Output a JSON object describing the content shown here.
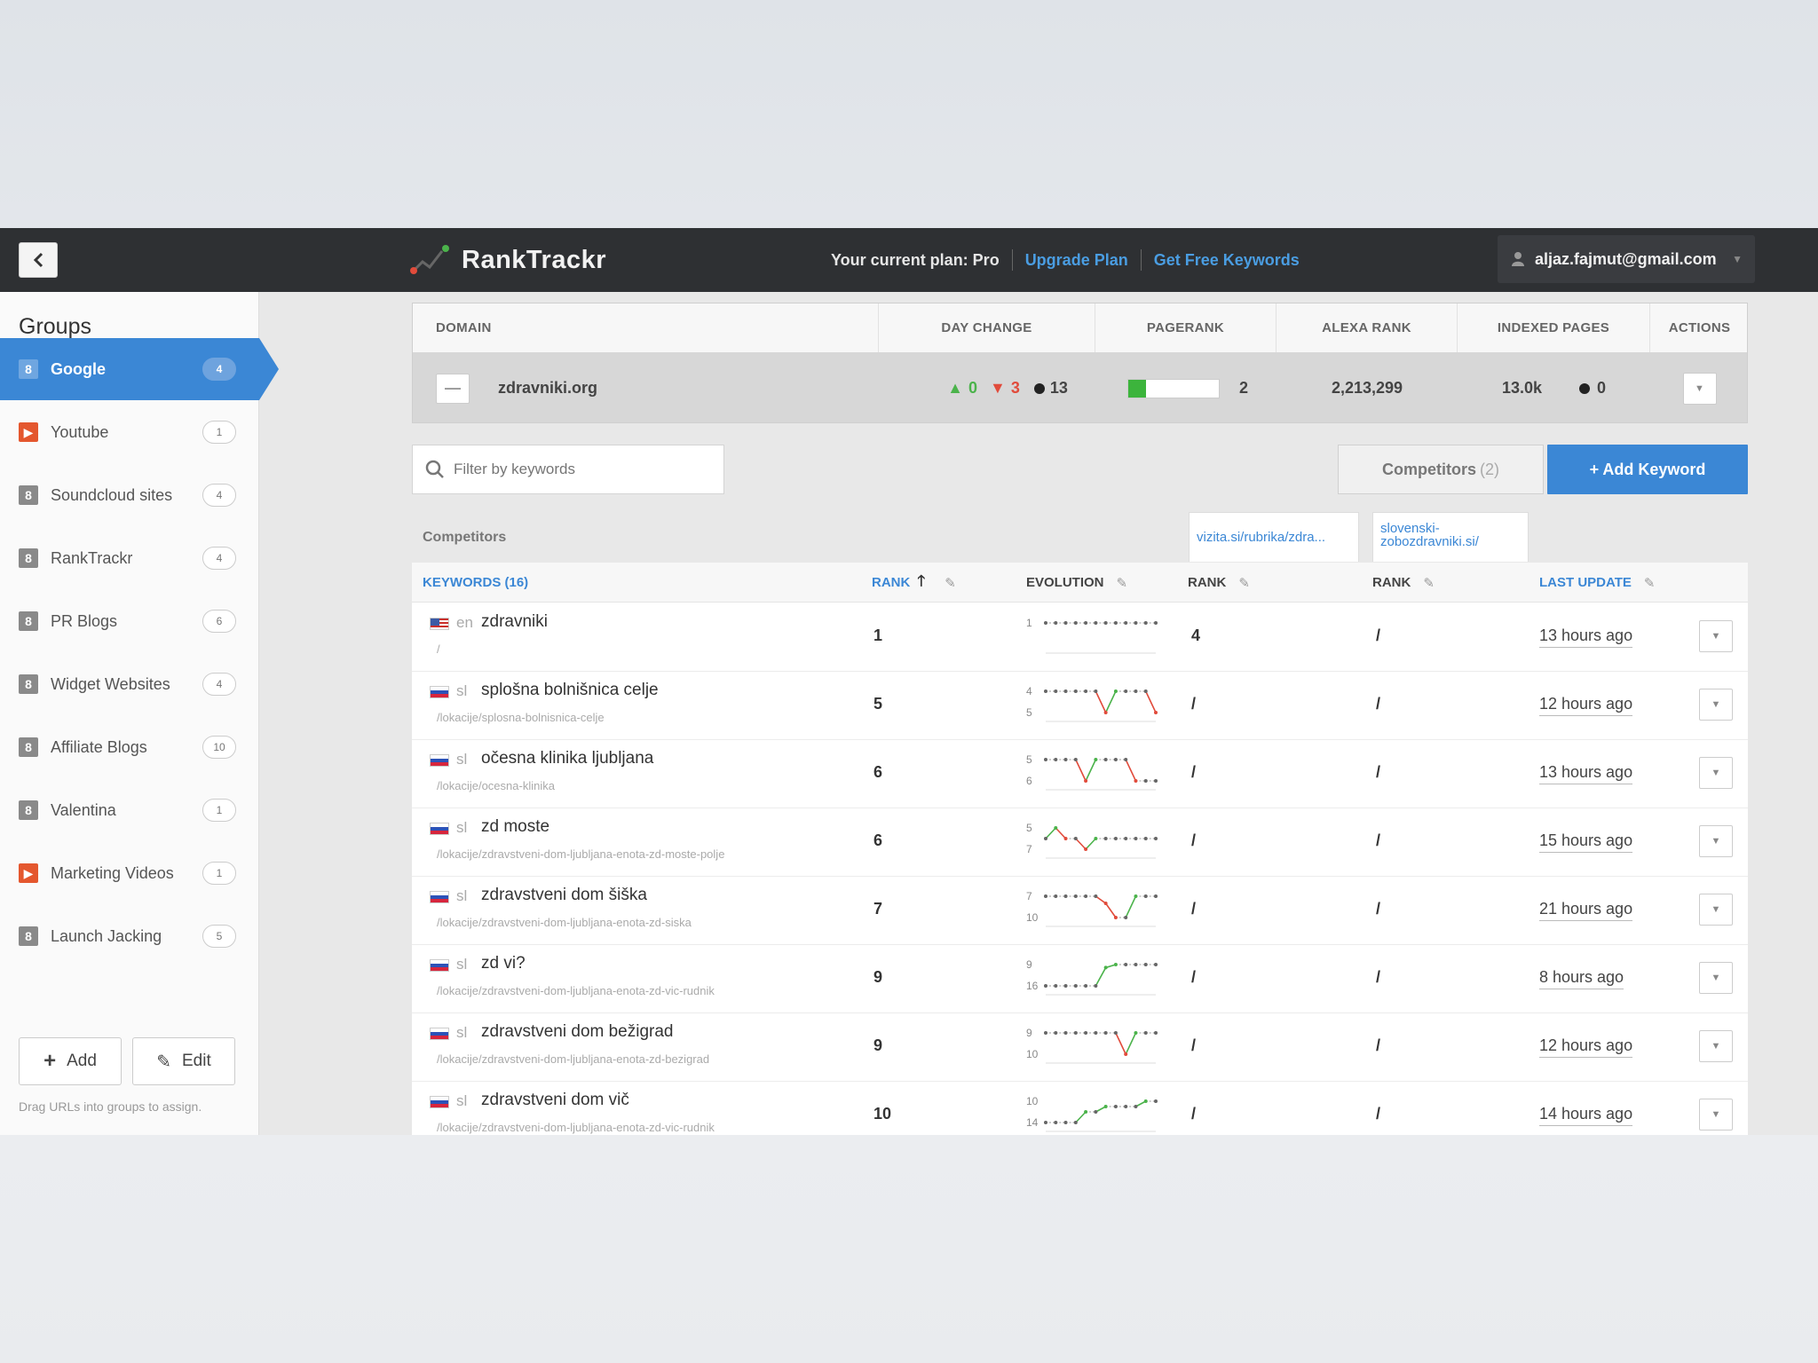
{
  "topbar": {
    "app_name": "RankTrackr",
    "plan_text": "Your current plan: Pro",
    "upgrade_link": "Upgrade Plan",
    "free_keywords_link": "Get Free Keywords",
    "user_email": "aljaz.fajmut@gmail.com"
  },
  "sidebar": {
    "title": "Groups",
    "items": [
      {
        "label": "Google",
        "count": "4",
        "icon": "google-icon",
        "active": true
      },
      {
        "label": "Youtube",
        "count": "1",
        "icon": "youtube-icon"
      },
      {
        "label": "Soundcloud sites",
        "count": "4",
        "icon": "google-icon"
      },
      {
        "label": "RankTrackr",
        "count": "4",
        "icon": "google-icon"
      },
      {
        "label": "PR Blogs",
        "count": "6",
        "icon": "google-icon"
      },
      {
        "label": "Widget Websites",
        "count": "4",
        "icon": "google-icon"
      },
      {
        "label": "Affiliate Blogs",
        "count": "10",
        "icon": "google-icon"
      },
      {
        "label": "Valentina",
        "count": "1",
        "icon": "google-icon"
      },
      {
        "label": "Marketing Videos",
        "count": "1",
        "icon": "youtube-icon"
      },
      {
        "label": "Launch Jacking",
        "count": "5",
        "icon": "google-icon"
      }
    ],
    "add_label": "Add",
    "edit_label": "Edit",
    "drag_hint": "Drag URLs into groups to assign."
  },
  "domain_table": {
    "headers": {
      "domain": "DOMAIN",
      "day_change": "DAY CHANGE",
      "pagerank": "PAGERANK",
      "alexa": "ALEXA RANK",
      "indexed": "INDEXED PAGES",
      "actions": "ACTIONS"
    },
    "row": {
      "domain": "zdravniki.org",
      "up": "0",
      "down": "3",
      "same": "13",
      "pagerank": "2",
      "pagerank_fill": 0.2,
      "alexa": "2,213,299",
      "indexed": "13.0k",
      "indexed_dot": "0"
    }
  },
  "filter": {
    "placeholder": "Filter by keywords"
  },
  "competitors_button": {
    "label": "Competitors",
    "count": "(2)"
  },
  "add_keyword_button": {
    "label": "+ Add Keyword"
  },
  "competitors_label": "Competitors",
  "competitor_tabs": [
    "vizita.si/rubrika/zdra...",
    "slovenski-zobozdravniki.si/"
  ],
  "keywords_table": {
    "headers": {
      "keywords": "KEYWORDS (16)",
      "rank": "RANK",
      "evolution": "EVOLUTION",
      "comp_rank_1": "RANK",
      "comp_rank_2": "RANK",
      "last_update": "LAST UPDATE"
    },
    "rows": [
      {
        "flag": "us",
        "lang": "en",
        "keyword": "zdravniki",
        "url": "/",
        "rank": "1",
        "evo_top": "1",
        "evo_bottom": "",
        "evo": [
          1,
          1,
          1,
          1,
          1,
          1,
          1,
          1,
          1,
          1,
          1,
          1
        ],
        "c1": "4",
        "c2": "/",
        "updated": "13 hours ago"
      },
      {
        "flag": "si",
        "lang": "sl",
        "keyword": "splošna bolnišnica celje",
        "url": "/lokacije/splosna-bolnisnica-celje",
        "rank": "5",
        "evo_top": "4",
        "evo_bottom": "5",
        "evo": [
          4,
          4,
          4,
          4,
          4,
          4,
          5,
          4,
          4,
          4,
          4,
          5
        ],
        "c1": "/",
        "c2": "/",
        "updated": "12 hours ago"
      },
      {
        "flag": "si",
        "lang": "sl",
        "keyword": "očesna klinika ljubljana",
        "url": "/lokacije/ocesna-klinika",
        "rank": "6",
        "evo_top": "5",
        "evo_bottom": "6",
        "evo": [
          5,
          5,
          5,
          5,
          6,
          5,
          5,
          5,
          5,
          6,
          6,
          6
        ],
        "c1": "/",
        "c2": "/",
        "updated": "13 hours ago"
      },
      {
        "flag": "si",
        "lang": "sl",
        "keyword": "zd moste",
        "url": "/lokacije/zdravstveni-dom-ljubljana-enota-zd-moste-polje",
        "rank": "6",
        "evo_top": "5",
        "evo_bottom": "7",
        "evo": [
          6,
          5,
          6,
          6,
          7,
          6,
          6,
          6,
          6,
          6,
          6,
          6
        ],
        "c1": "/",
        "c2": "/",
        "updated": "15 hours ago"
      },
      {
        "flag": "si",
        "lang": "sl",
        "keyword": "zdravstveni dom šiška",
        "url": "/lokacije/zdravstveni-dom-ljubljana-enota-zd-siska",
        "rank": "7",
        "evo_top": "7",
        "evo_bottom": "10",
        "evo": [
          7,
          7,
          7,
          7,
          7,
          7,
          8,
          10,
          10,
          7,
          7,
          7
        ],
        "c1": "/",
        "c2": "/",
        "updated": "21 hours ago"
      },
      {
        "flag": "si",
        "lang": "sl",
        "keyword": "zd vi?",
        "url": "/lokacije/zdravstveni-dom-ljubljana-enota-zd-vic-rudnik",
        "rank": "9",
        "evo_top": "9",
        "evo_bottom": "16",
        "evo": [
          16,
          16,
          16,
          16,
          16,
          16,
          10,
          9,
          9,
          9,
          9,
          9
        ],
        "c1": "/",
        "c2": "/",
        "updated": "8 hours ago"
      },
      {
        "flag": "si",
        "lang": "sl",
        "keyword": "zdravstveni dom bežigrad",
        "url": "/lokacije/zdravstveni-dom-ljubljana-enota-zd-bezigrad",
        "rank": "9",
        "evo_top": "9",
        "evo_bottom": "10",
        "evo": [
          9,
          9,
          9,
          9,
          9,
          9,
          9,
          9,
          10,
          9,
          9,
          9
        ],
        "c1": "/",
        "c2": "/",
        "updated": "12 hours ago"
      },
      {
        "flag": "si",
        "lang": "sl",
        "keyword": "zdravstveni dom vič",
        "url": "/lokacije/zdravstveni-dom-ljubljana-enota-zd-vic-rudnik",
        "rank": "10",
        "evo_top": "10",
        "evo_bottom": "14",
        "evo": [
          14,
          14,
          14,
          14,
          12,
          12,
          11,
          11,
          11,
          11,
          10,
          10
        ],
        "c1": "/",
        "c2": "/",
        "updated": "14 hours ago"
      }
    ]
  }
}
